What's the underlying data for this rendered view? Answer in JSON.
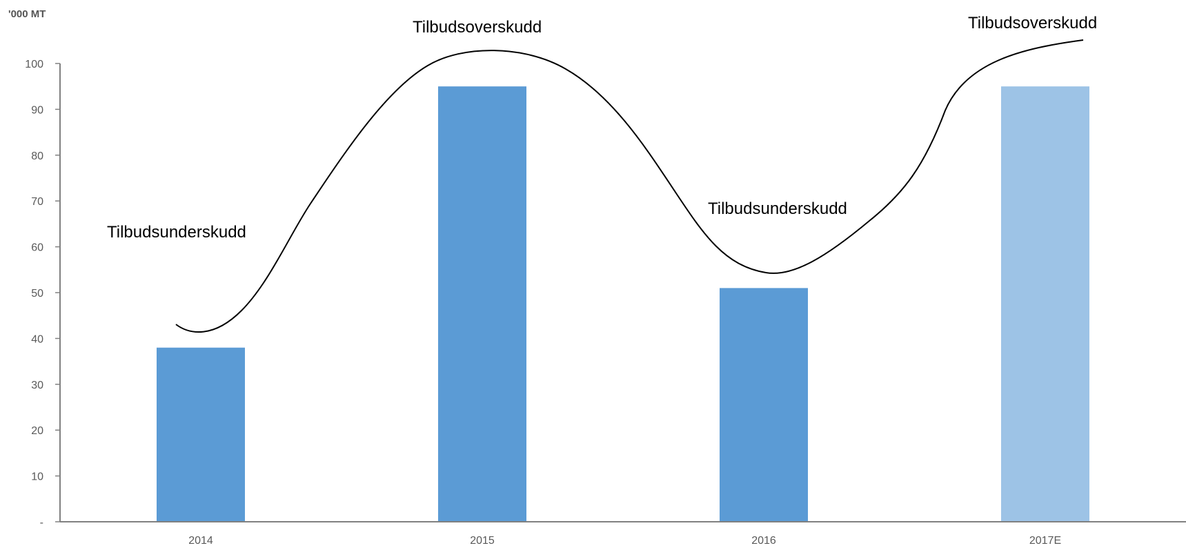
{
  "chart_data": {
    "type": "bar",
    "unit_label": "'000 MT",
    "categories": [
      "2014",
      "2015",
      "2016",
      "2017E"
    ],
    "values": [
      38,
      95,
      51,
      95
    ],
    "ylim": [
      0,
      100
    ],
    "yticks": [
      0,
      10,
      20,
      30,
      40,
      50,
      60,
      70,
      80,
      90,
      100
    ],
    "ytick_labels": [
      "-",
      "10",
      "20",
      "30",
      "40",
      "50",
      "60",
      "70",
      "80",
      "90",
      "100"
    ],
    "bar_colors": [
      "#5b9bd5",
      "#5b9bd5",
      "#5b9bd5",
      "#9dc3e6"
    ],
    "grid": false,
    "annotations": [
      {
        "text": "Tilbudsunderskudd"
      },
      {
        "text": "Tilbudsoverskudd"
      },
      {
        "text": "Tilbudsunderskudd"
      },
      {
        "text": "Tilbudsoverskudd"
      }
    ]
  }
}
